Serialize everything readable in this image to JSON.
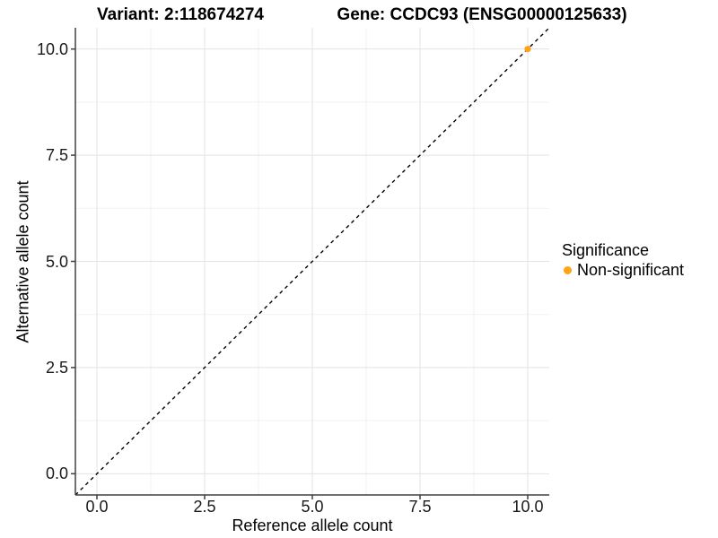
{
  "title": {
    "variant": "Variant: 2:118674274",
    "gene": "Gene: CCDC93 (ENSG00000125633)"
  },
  "axes": {
    "x_label": "Reference allele count",
    "y_label": "Alternative allele count"
  },
  "legend": {
    "title": "Significance",
    "items": [
      {
        "label": "Non-significant",
        "color": "#FFA216",
        "marker": "circle-icon"
      }
    ]
  },
  "colors": {
    "background": "#FFFFFF",
    "point": "#FFA216",
    "grid_major": "#E3E3E3",
    "grid_minor": "#F2F2F2",
    "axis_line": "#404040",
    "reference_line": "#000000",
    "text": "#000000"
  },
  "chart_data": {
    "type": "scatter",
    "title": "Variant: 2:118674274    Gene: CCDC93 (ENSG00000125633)",
    "xlabel": "Reference allele count",
    "ylabel": "Alternative allele count",
    "xlim": [
      -0.5,
      10.5
    ],
    "ylim": [
      -0.5,
      10.5
    ],
    "x_ticks": [
      0,
      2.5,
      5,
      7.5,
      10
    ],
    "y_ticks": [
      0,
      2.5,
      5,
      7.5,
      10
    ],
    "x_tick_labels": [
      "0.0",
      "2.5",
      "5.0",
      "7.5",
      "10.0"
    ],
    "y_tick_labels": [
      "0.0",
      "2.5",
      "5.0",
      "7.5",
      "10.0"
    ],
    "x_minor_ticks": [
      1.25,
      3.75,
      6.25,
      8.75
    ],
    "y_minor_ticks": [
      1.25,
      3.75,
      6.25,
      8.75
    ],
    "grid": true,
    "legend_position": "right",
    "series": [
      {
        "name": "Non-significant",
        "color": "#FFA216",
        "points": [
          {
            "x": 10,
            "y": 10
          }
        ]
      }
    ],
    "reference_line": {
      "type": "identity y=x",
      "style": "dashed",
      "color": "#000000",
      "x0": -0.5,
      "y0": -0.5,
      "x1": 10.5,
      "y1": 10.5
    }
  }
}
